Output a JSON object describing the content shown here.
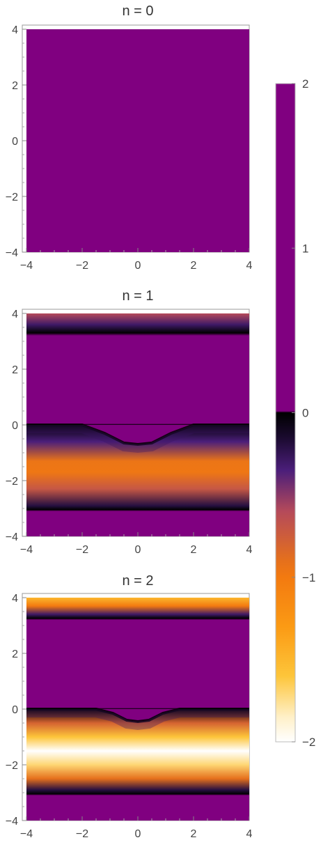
{
  "chart_data": [
    {
      "type": "heatmap",
      "title": "n = 0",
      "xlim": [
        -4,
        4
      ],
      "ylim": [
        -4,
        4
      ],
      "xticks": [
        "−4",
        "−2",
        "0",
        "2",
        "4"
      ],
      "yticks": [
        "4",
        "2",
        "0",
        "−2",
        "−4"
      ],
      "regions": [
        {
          "y_from": -4,
          "y_to": 4,
          "value": 2
        }
      ]
    },
    {
      "type": "heatmap",
      "title": "n = 1",
      "xlim": [
        -4,
        4
      ],
      "ylim": [
        -4,
        4
      ],
      "xticks": [
        "−4",
        "−2",
        "0",
        "2",
        "4"
      ],
      "yticks": [
        "4",
        "2",
        "0",
        "−2",
        "−4"
      ],
      "boundary_curve": {
        "x": [
          -4,
          -2,
          -1.2,
          -0.5,
          0,
          0.5,
          1.2,
          2,
          4
        ],
        "y": [
          0,
          0,
          -0.3,
          -0.65,
          -0.7,
          -0.65,
          -0.3,
          0,
          0
        ]
      },
      "profile": [
        {
          "y": 4.0,
          "value": -0.6
        },
        {
          "y": 3.6,
          "value": -0.3
        },
        {
          "y": 3.3,
          "value": 0
        },
        {
          "y": 3.2,
          "value": 2
        },
        {
          "y": 0.05,
          "value": 2
        },
        {
          "y": 0.0,
          "value": 0
        },
        {
          "y": -0.6,
          "value": -0.35
        },
        {
          "y": -1.3,
          "value": -0.95
        },
        {
          "y": -1.7,
          "value": -0.97
        },
        {
          "y": -2.3,
          "value": -0.7
        },
        {
          "y": -2.9,
          "value": -0.2
        },
        {
          "y": -3.05,
          "value": 0
        },
        {
          "y": -3.1,
          "value": 2
        },
        {
          "y": -4.0,
          "value": 2
        }
      ]
    },
    {
      "type": "heatmap",
      "title": "n = 2",
      "xlim": [
        -4,
        4
      ],
      "ylim": [
        -4,
        4
      ],
      "xticks": [
        "−4",
        "−2",
        "0",
        "2",
        "4"
      ],
      "yticks": [
        "4",
        "2",
        "0",
        "−2",
        "−4"
      ],
      "boundary_curve": {
        "x": [
          -4,
          -1.5,
          -0.9,
          -0.4,
          0,
          0.4,
          0.9,
          1.5,
          4
        ],
        "y": [
          0,
          0,
          -0.15,
          -0.4,
          -0.45,
          -0.4,
          -0.15,
          0,
          0
        ]
      },
      "profile": [
        {
          "y": 4.0,
          "value": -1.5
        },
        {
          "y": 3.7,
          "value": -1.0
        },
        {
          "y": 3.4,
          "value": -0.3
        },
        {
          "y": 3.25,
          "value": 0
        },
        {
          "y": 3.2,
          "value": 2
        },
        {
          "y": 0.05,
          "value": 2
        },
        {
          "y": 0.0,
          "value": 0
        },
        {
          "y": -0.5,
          "value": -0.8
        },
        {
          "y": -1.0,
          "value": -1.6
        },
        {
          "y": -1.5,
          "value": -2.0
        },
        {
          "y": -2.0,
          "value": -1.7
        },
        {
          "y": -2.5,
          "value": -0.9
        },
        {
          "y": -2.9,
          "value": -0.2
        },
        {
          "y": -3.05,
          "value": 0
        },
        {
          "y": -3.1,
          "value": 2
        },
        {
          "y": -4.0,
          "value": 2
        }
      ]
    }
  ],
  "colorbar": {
    "range": [
      -2,
      2
    ],
    "tick_labels": [
      "2",
      "1",
      "0",
      "−1",
      "−2"
    ],
    "tick_values": [
      2,
      1,
      0,
      -1,
      -2
    ],
    "stops": [
      {
        "value": 2,
        "color": "#800080"
      },
      {
        "value": 0.01,
        "color": "#800080"
      },
      {
        "value": 0,
        "color": "#000000"
      },
      {
        "value": -0.15,
        "color": "#1a0a2e"
      },
      {
        "value": -0.35,
        "color": "#4b1e7a"
      },
      {
        "value": -0.6,
        "color": "#b54a5a"
      },
      {
        "value": -0.9,
        "color": "#e5701c"
      },
      {
        "value": -1.0,
        "color": "#f37a10"
      },
      {
        "value": -1.3,
        "color": "#fb9a14"
      },
      {
        "value": -1.6,
        "color": "#fdc53a"
      },
      {
        "value": -1.85,
        "color": "#fff0c8"
      },
      {
        "value": -2.0,
        "color": "#ffffff"
      }
    ]
  }
}
